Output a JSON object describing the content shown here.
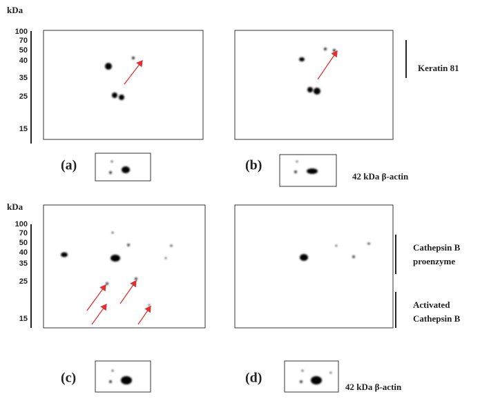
{
  "figure": {
    "top": {
      "axis_label": "kDa",
      "markers": [
        100,
        70,
        50,
        40,
        35,
        25,
        15
      ],
      "panels": [
        "(a)",
        "(b)"
      ],
      "annotation": "Keratin 81",
      "actin_label": "42 kDa β-actin"
    },
    "bottom": {
      "axis_label": "kDa",
      "markers": [
        100,
        70,
        50,
        40,
        35,
        25,
        15
      ],
      "panels": [
        "(c)",
        "(d)"
      ],
      "annotations": [
        [
          "Cathepsin B",
          "proenzyme"
        ],
        [
          "Activated",
          "Cathepsin B"
        ]
      ],
      "actin_label": "42 kDa β-actin"
    }
  }
}
